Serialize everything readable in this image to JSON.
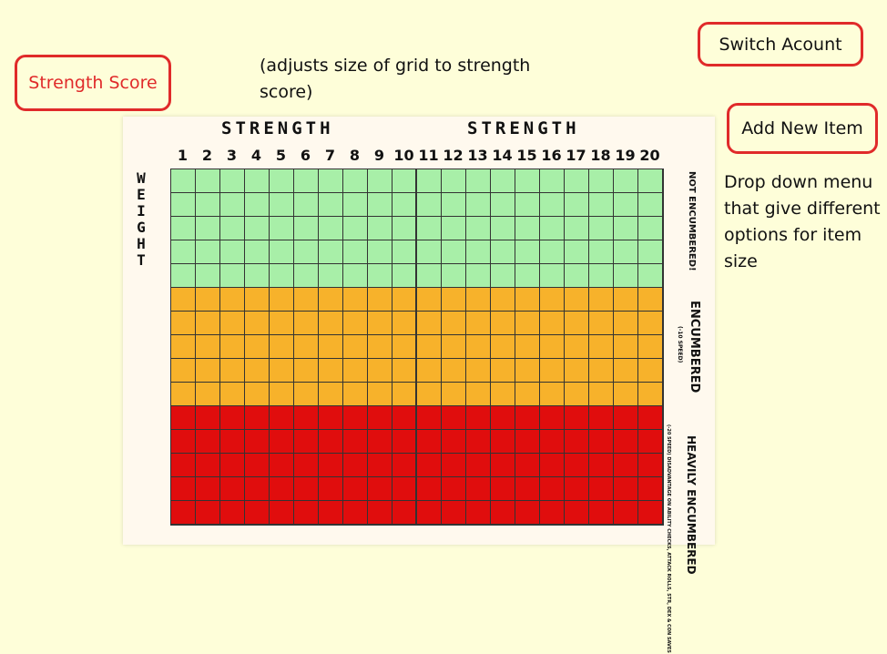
{
  "buttons": {
    "strength_score": "Strength Score",
    "switch_account": "Switch Acount",
    "add_new_item": "Add New Item"
  },
  "notes": {
    "grid_adjust": "(adjusts size of grid to strength score)",
    "dropdown": "Drop down menu that give different options for item size"
  },
  "grid": {
    "title_left": "STRENGTH",
    "title_right": "STRENGTH",
    "y_label": "WEIGHT",
    "columns": [
      "1",
      "2",
      "3",
      "4",
      "5",
      "6",
      "7",
      "8",
      "9",
      "10",
      "11",
      "12",
      "13",
      "14",
      "15",
      "16",
      "17",
      "18",
      "19",
      "20"
    ],
    "bands": [
      {
        "label": "NOT ENCUMBERED!",
        "sub": "",
        "rows": 5,
        "color": "#a8efa8"
      },
      {
        "label": "ENCUMBERED",
        "sub": "(-10 SPEED)",
        "rows": 5,
        "color": "#f7b22b"
      },
      {
        "label": "HEAVILY ENCUMBERED",
        "sub": "(-20 SPEED) DISADVANTAGE ON ABILITY CHECKS, ATTACK ROLLS, STR, DEX & CON SAVES",
        "rows": 5,
        "color": "#e00d0d"
      }
    ]
  }
}
